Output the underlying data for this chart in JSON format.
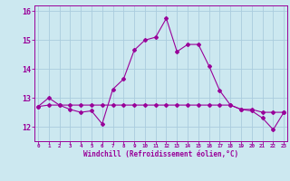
{
  "xlabel": "Windchill (Refroidissement éolien,°C)",
  "x": [
    0,
    1,
    2,
    3,
    4,
    5,
    6,
    7,
    8,
    9,
    10,
    11,
    12,
    13,
    14,
    15,
    16,
    17,
    18,
    19,
    20,
    21,
    22,
    23
  ],
  "windchill": [
    12.7,
    13.0,
    12.75,
    12.6,
    12.5,
    12.55,
    12.1,
    13.3,
    13.65,
    14.65,
    15.0,
    15.1,
    15.75,
    14.6,
    14.85,
    14.85,
    14.1,
    13.25,
    12.75,
    12.6,
    12.55,
    12.3,
    11.9,
    12.5
  ],
  "temp": [
    12.7,
    12.75,
    12.75,
    12.75,
    12.75,
    12.75,
    12.75,
    12.75,
    12.75,
    12.75,
    12.75,
    12.75,
    12.75,
    12.75,
    12.75,
    12.75,
    12.75,
    12.75,
    12.75,
    12.6,
    12.6,
    12.5,
    12.5,
    12.5
  ],
  "line_color": "#990099",
  "bg_color": "#cce8f0",
  "grid_color": "#aaccdd",
  "ylim": [
    11.5,
    16.2
  ],
  "yticks": [
    12,
    13,
    14,
    15,
    16
  ],
  "xlim": [
    -0.3,
    23.3
  ],
  "xtick_labels": [
    "0",
    "1",
    "2",
    "3",
    "4",
    "5",
    "6",
    "7",
    "8",
    "9",
    "10",
    "11",
    "12",
    "13",
    "14",
    "15",
    "16",
    "17",
    "18",
    "19",
    "20",
    "21",
    "22",
    "23"
  ]
}
